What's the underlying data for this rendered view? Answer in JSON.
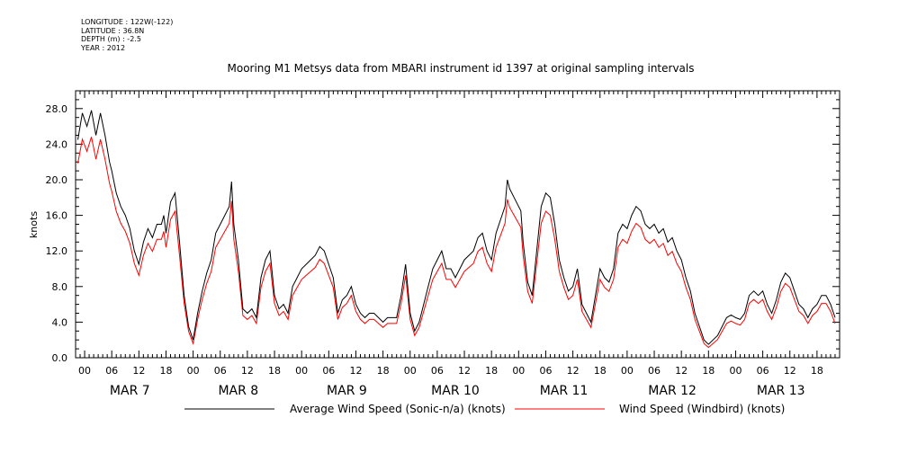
{
  "header": {
    "longitude": "LONGITUDE : 122W(-122)",
    "latitude": "LATITUDE : 36.8N",
    "depth": "DEPTH (m) : -2.5",
    "year": "YEAR : 2012"
  },
  "chart_data": {
    "type": "line",
    "title": "Mooring M1 Metsys data from MBARI instrument id 1397 at original sampling intervals",
    "ylabel": "knots",
    "xlabel": "",
    "ylim": [
      0,
      30
    ],
    "yticks": [
      "0.0",
      "4.0",
      "8.0",
      "12.0",
      "16.0",
      "20.0",
      "24.0",
      "28.0"
    ],
    "x_unit": "hours since MAR 7 00:00",
    "xlim": [
      -1.5,
      166
    ],
    "hour_labels": [
      "00",
      "06",
      "12",
      "18"
    ],
    "days": [
      "MAR  7",
      "MAR  8",
      "MAR  9",
      "MAR 10",
      "MAR 11",
      "MAR 12",
      "MAR 13"
    ],
    "grid": false,
    "legend": "bottom",
    "series": [
      {
        "name": "Average Wind Speed (Sonic-n/a) (knots)",
        "color": "#000000",
        "points": [
          [
            -1.5,
            24.5
          ],
          [
            -0.5,
            27.5
          ],
          [
            0.5,
            26
          ],
          [
            1.5,
            27.8
          ],
          [
            2.5,
            25
          ],
          [
            3.5,
            27.5
          ],
          [
            4.5,
            25
          ],
          [
            5.5,
            22
          ],
          [
            6,
            21
          ],
          [
            7,
            18.5
          ],
          [
            8,
            17
          ],
          [
            9,
            16
          ],
          [
            10,
            14.5
          ],
          [
            11,
            12
          ],
          [
            12,
            10.5
          ],
          [
            13,
            13
          ],
          [
            14,
            14.5
          ],
          [
            15,
            13.5
          ],
          [
            16,
            15
          ],
          [
            17,
            15
          ],
          [
            17.5,
            16
          ],
          [
            18,
            14
          ],
          [
            19,
            17.5
          ],
          [
            20,
            18.5
          ],
          [
            21,
            13
          ],
          [
            22,
            7
          ],
          [
            23,
            3.5
          ],
          [
            24,
            2
          ],
          [
            25,
            5
          ],
          [
            26,
            7.5
          ],
          [
            27,
            9.5
          ],
          [
            28,
            11
          ],
          [
            29,
            14
          ],
          [
            30,
            15
          ],
          [
            31,
            16
          ],
          [
            32,
            17
          ],
          [
            32.5,
            19.8
          ],
          [
            33,
            15
          ],
          [
            34,
            11
          ],
          [
            35,
            5.5
          ],
          [
            36,
            5
          ],
          [
            37,
            5.5
          ],
          [
            38,
            4.5
          ],
          [
            39,
            9
          ],
          [
            40,
            11
          ],
          [
            41,
            12
          ],
          [
            41.5,
            9.5
          ],
          [
            42,
            7
          ],
          [
            43,
            5.5
          ],
          [
            44,
            6
          ],
          [
            45,
            5
          ],
          [
            46,
            8
          ],
          [
            47,
            9
          ],
          [
            48,
            10
          ],
          [
            49,
            10.5
          ],
          [
            50,
            11
          ],
          [
            51,
            11.5
          ],
          [
            52,
            12.5
          ],
          [
            53,
            12
          ],
          [
            54,
            10.5
          ],
          [
            55,
            9
          ],
          [
            56,
            5
          ],
          [
            57,
            6.5
          ],
          [
            58,
            7
          ],
          [
            59,
            8
          ],
          [
            60,
            6
          ],
          [
            61,
            5
          ],
          [
            62,
            4.5
          ],
          [
            63,
            5
          ],
          [
            64,
            5
          ],
          [
            65,
            4.5
          ],
          [
            66,
            4
          ],
          [
            67,
            4.5
          ],
          [
            68,
            4.5
          ],
          [
            69,
            4.5
          ],
          [
            70,
            7
          ],
          [
            71,
            10.5
          ],
          [
            72,
            5
          ],
          [
            73,
            3
          ],
          [
            74,
            4
          ],
          [
            75,
            6
          ],
          [
            76,
            8
          ],
          [
            77,
            10
          ],
          [
            78,
            11
          ],
          [
            79,
            12
          ],
          [
            80,
            10
          ],
          [
            81,
            10
          ],
          [
            82,
            9
          ],
          [
            83,
            10
          ],
          [
            84,
            11
          ],
          [
            85,
            11.5
          ],
          [
            86,
            12
          ],
          [
            87,
            13.5
          ],
          [
            88,
            14
          ],
          [
            89,
            12
          ],
          [
            90,
            11
          ],
          [
            91,
            14
          ],
          [
            92,
            15.5
          ],
          [
            93,
            17
          ],
          [
            93.5,
            20
          ],
          [
            94,
            19
          ],
          [
            95,
            18
          ],
          [
            96,
            17
          ],
          [
            96.5,
            16.5
          ],
          [
            97,
            13
          ],
          [
            98,
            8.5
          ],
          [
            99,
            7
          ],
          [
            100,
            12
          ],
          [
            101,
            17
          ],
          [
            102,
            18.5
          ],
          [
            103,
            18
          ],
          [
            104,
            15
          ],
          [
            105,
            11
          ],
          [
            106,
            9
          ],
          [
            107,
            7.5
          ],
          [
            108,
            8
          ],
          [
            109,
            10
          ],
          [
            110,
            6
          ],
          [
            111,
            5
          ],
          [
            112,
            4
          ],
          [
            113,
            7
          ],
          [
            114,
            10
          ],
          [
            115,
            9
          ],
          [
            116,
            8.5
          ],
          [
            117,
            10
          ],
          [
            118,
            14
          ],
          [
            119,
            15
          ],
          [
            120,
            14.5
          ],
          [
            121,
            16
          ],
          [
            122,
            17
          ],
          [
            123,
            16.5
          ],
          [
            124,
            15
          ],
          [
            125,
            14.5
          ],
          [
            126,
            15
          ],
          [
            127,
            14
          ],
          [
            128,
            14.5
          ],
          [
            129,
            13
          ],
          [
            130,
            13.5
          ],
          [
            131,
            12
          ],
          [
            132,
            11
          ],
          [
            133,
            9
          ],
          [
            134,
            7.5
          ],
          [
            135,
            5
          ],
          [
            136,
            3.5
          ],
          [
            137,
            2
          ],
          [
            138,
            1.5
          ],
          [
            139,
            2
          ],
          [
            140,
            2.5
          ],
          [
            141,
            3.5
          ],
          [
            142,
            4.5
          ],
          [
            143,
            4.8
          ],
          [
            144,
            4.5
          ],
          [
            145,
            4.3
          ],
          [
            146,
            5
          ],
          [
            147,
            7
          ],
          [
            148,
            7.5
          ],
          [
            149,
            7
          ],
          [
            150,
            7.5
          ],
          [
            151,
            6
          ],
          [
            152,
            5
          ],
          [
            153,
            6.5
          ],
          [
            154,
            8.5
          ],
          [
            155,
            9.5
          ],
          [
            156,
            9
          ],
          [
            157,
            7.5
          ],
          [
            158,
            6
          ],
          [
            159,
            5.5
          ],
          [
            160,
            4.5
          ],
          [
            161,
            5.5
          ],
          [
            162,
            6
          ],
          [
            163,
            7
          ],
          [
            164,
            7
          ],
          [
            165,
            6
          ],
          [
            166,
            4.5
          ]
        ],
        "points_day_offset_note": "",
        "points2": []
      }
    ]
  }
}
